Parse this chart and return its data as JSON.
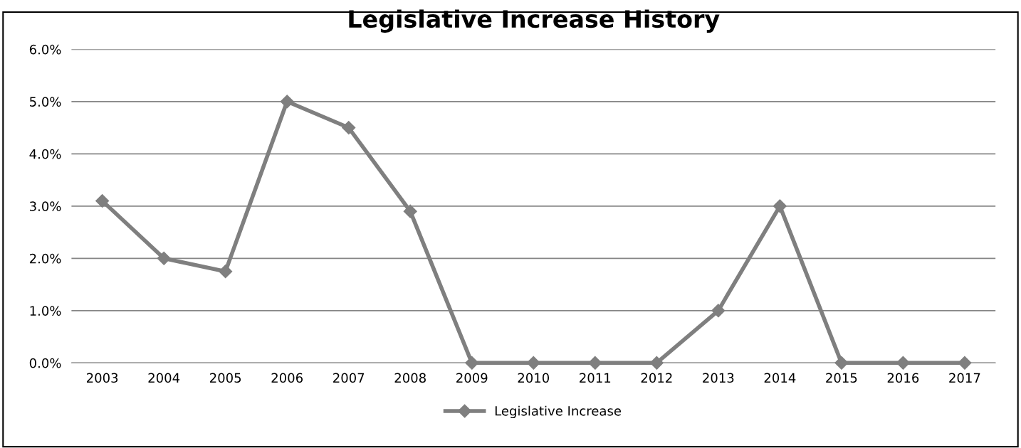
{
  "chart_data": {
    "type": "line",
    "title": "Legislative Increase History",
    "categories": [
      "2003",
      "2004",
      "2005",
      "2006",
      "2007",
      "2008",
      "2009",
      "2010",
      "2011",
      "2012",
      "2013",
      "2014",
      "2015",
      "2016",
      "2017"
    ],
    "series": [
      {
        "name": "Legislative Increase",
        "color": "#7f7f7f",
        "values": [
          3.1,
          2.0,
          1.75,
          5.0,
          4.5,
          2.9,
          0,
          0,
          0,
          0,
          1.0,
          3.0,
          0,
          0,
          0
        ]
      }
    ],
    "ylim": [
      0,
      6
    ],
    "yticks": [
      {
        "value": 0,
        "label": "0.0%"
      },
      {
        "value": 1,
        "label": "1.0%"
      },
      {
        "value": 2,
        "label": "2.0%"
      },
      {
        "value": 3,
        "label": "3.0%"
      },
      {
        "value": 4,
        "label": "4.0%"
      },
      {
        "value": 5,
        "label": "5.0%"
      },
      {
        "value": 6,
        "label": "6.0%"
      }
    ],
    "grid": "y",
    "legend": "bottom",
    "marker": "diamond",
    "line_style": "solid"
  }
}
